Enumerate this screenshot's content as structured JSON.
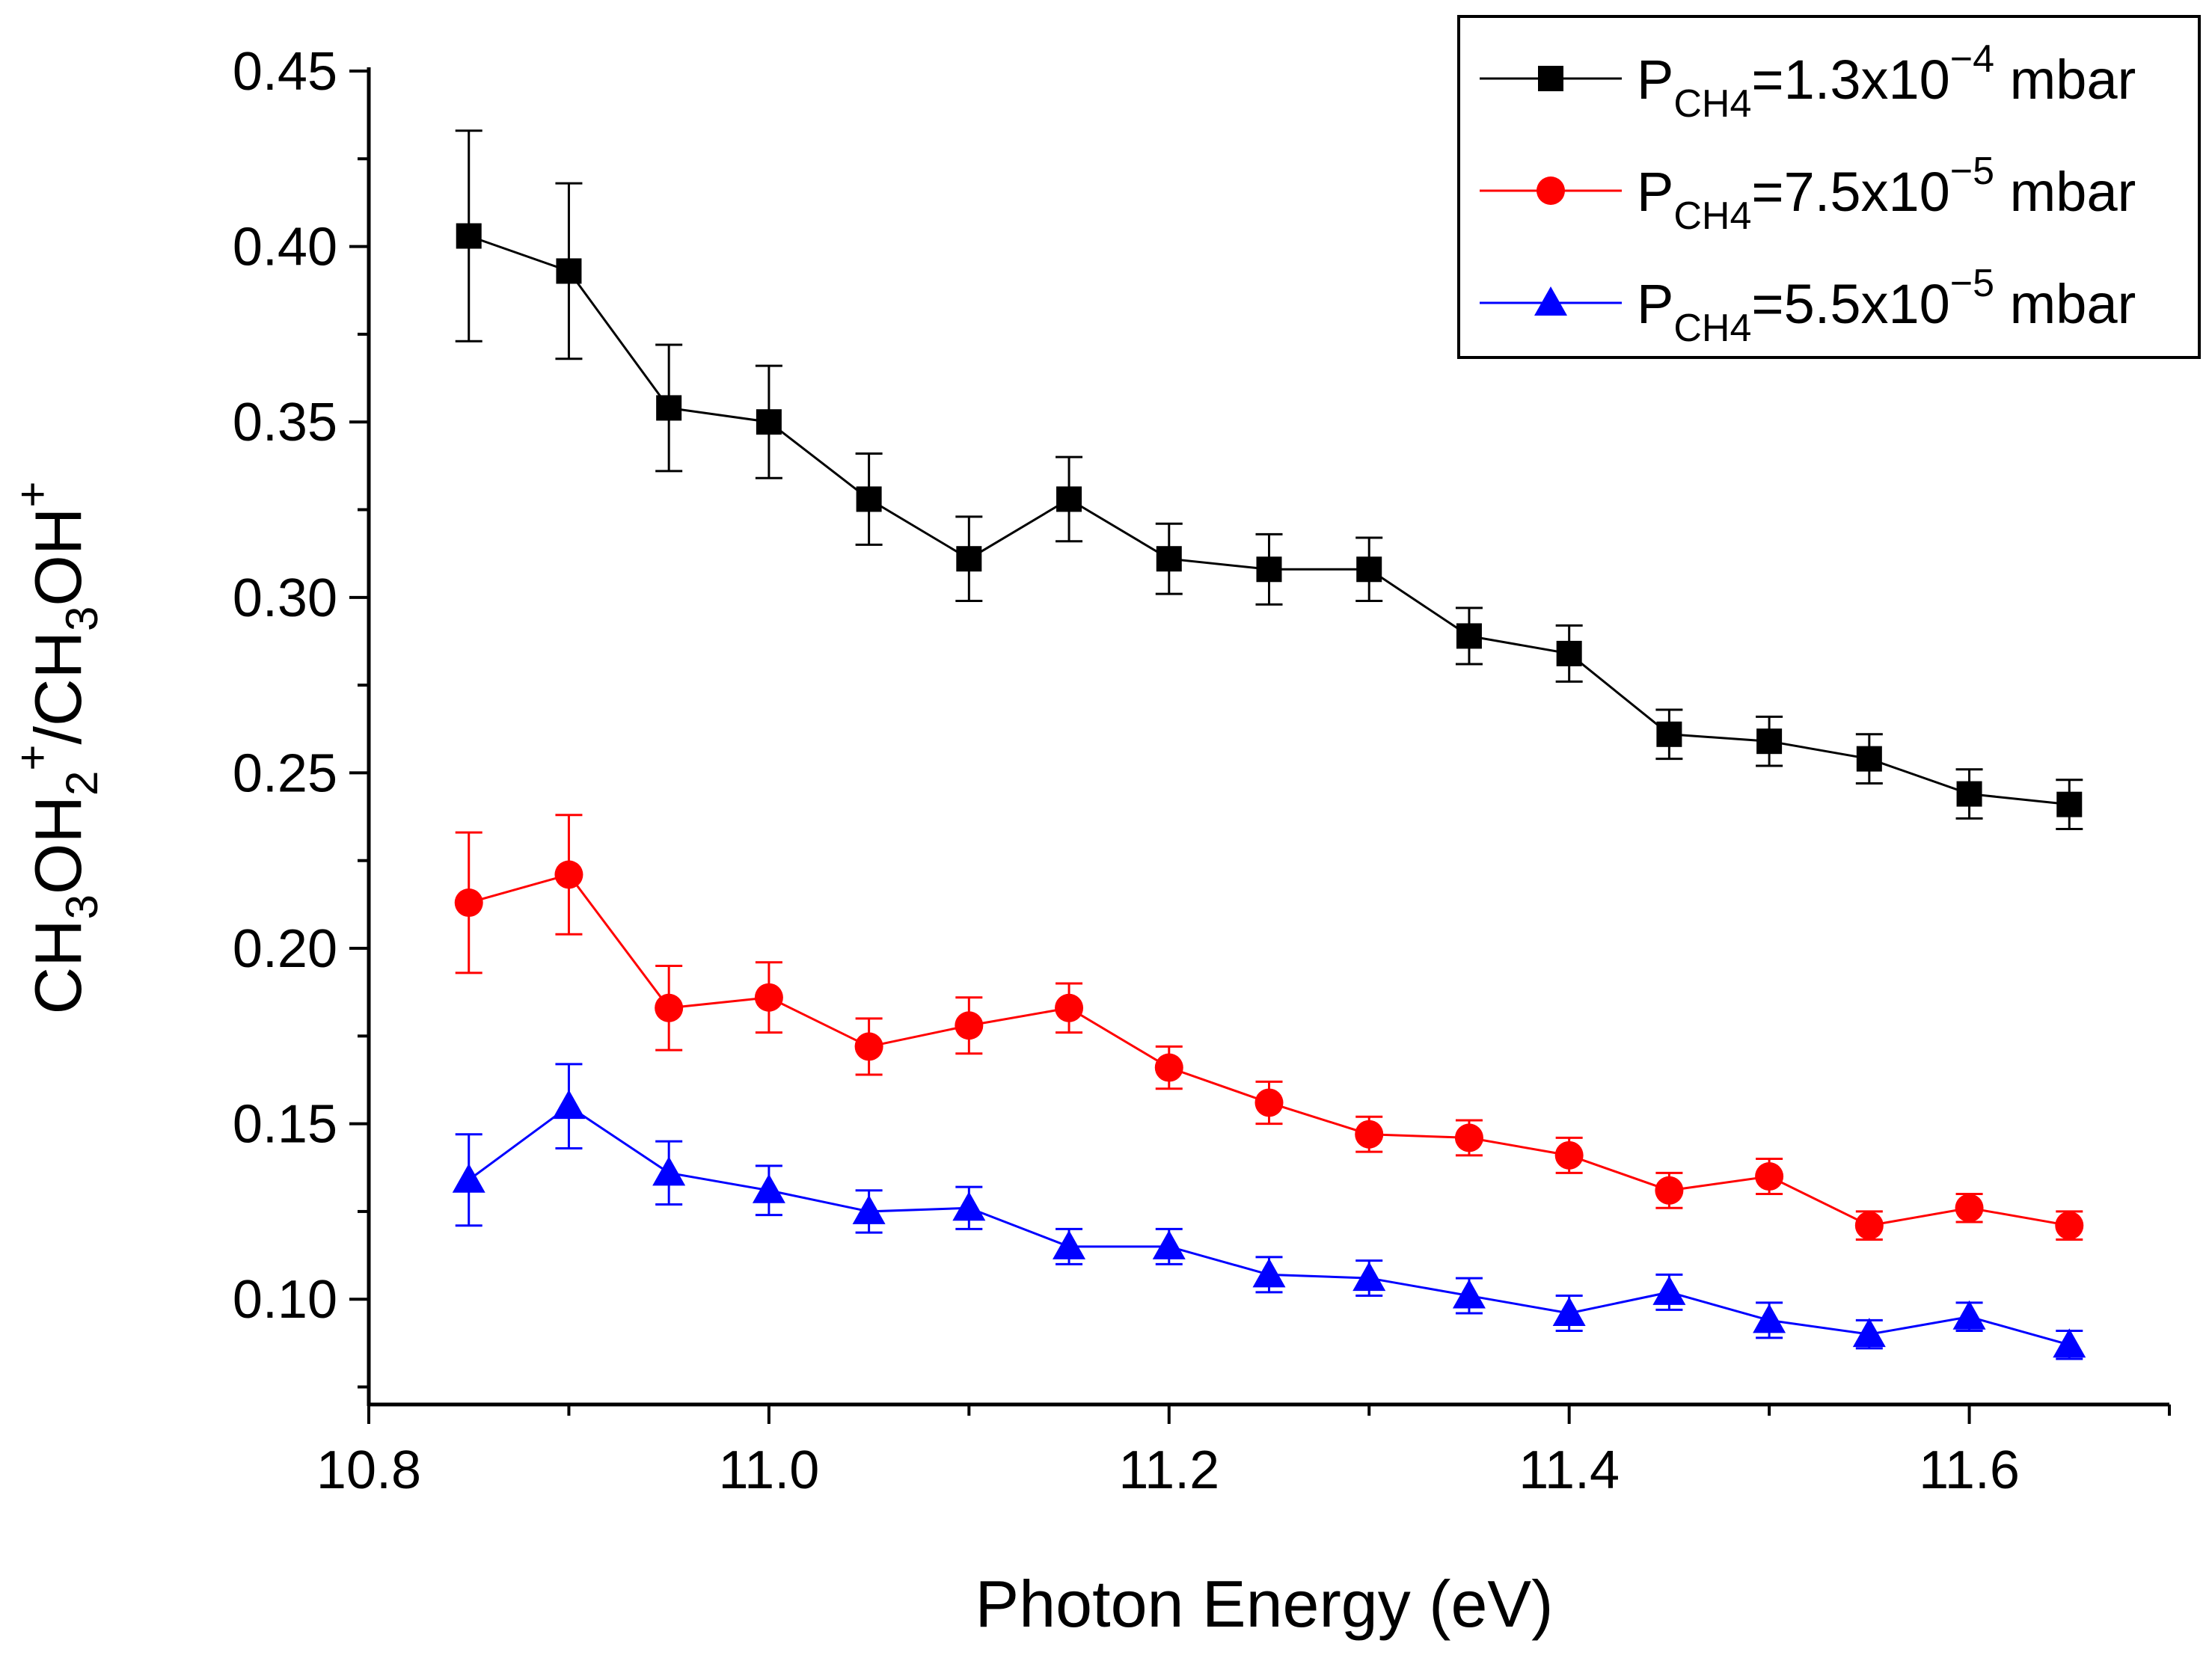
{
  "chart_data": {
    "type": "line",
    "title": "",
    "xlabel": "Photon Energy (eV)",
    "ylabel": {
      "parts": [
        {
          "t": "CH",
          "s": "n"
        },
        {
          "t": "3",
          "s": "sub"
        },
        {
          "t": "OH",
          "s": "n"
        },
        {
          "t": "2",
          "s": "sub"
        },
        {
          "t": "+",
          "s": "sup"
        },
        {
          "t": "/CH",
          "s": "n"
        },
        {
          "t": "3",
          "s": "sub"
        },
        {
          "t": "OH",
          "s": "n"
        },
        {
          "t": "+",
          "s": "sup"
        }
      ]
    },
    "xlim": [
      10.8,
      11.7
    ],
    "ylim": [
      0.07,
      0.45
    ],
    "xticks": [
      10.8,
      11.0,
      11.2,
      11.4,
      11.6
    ],
    "xtick_labels": [
      "10.8",
      "11.0",
      "11.2",
      "11.4",
      "11.6"
    ],
    "yticks": [
      0.1,
      0.15,
      0.2,
      0.25,
      0.3,
      0.35,
      0.4,
      0.45
    ],
    "ytick_labels": [
      "0.10",
      "0.15",
      "0.20",
      "0.25",
      "0.30",
      "0.35",
      "0.40",
      "0.45"
    ],
    "grid": false,
    "legend_position": "top-right",
    "x": [
      10.85,
      10.9,
      10.95,
      11.0,
      11.05,
      11.1,
      11.15,
      11.2,
      11.25,
      11.3,
      11.35,
      11.4,
      11.45,
      11.5,
      11.55,
      11.6,
      11.65
    ],
    "series": [
      {
        "name": "P_CH4=1.3x10^-4 mbar",
        "legend": {
          "p": "P",
          "sub": "CH4",
          "mid": "=1.3x10",
          "sup": "−4",
          "unit": " mbar"
        },
        "color": "#000000",
        "marker": "square",
        "values": [
          0.403,
          0.393,
          0.354,
          0.35,
          0.328,
          0.311,
          0.328,
          0.311,
          0.308,
          0.308,
          0.289,
          0.284,
          0.261,
          0.259,
          0.254,
          0.244,
          0.241
        ],
        "errors": [
          0.03,
          0.025,
          0.018,
          0.016,
          0.013,
          0.012,
          0.012,
          0.01,
          0.01,
          0.009,
          0.008,
          0.008,
          0.007,
          0.007,
          0.007,
          0.007,
          0.007
        ]
      },
      {
        "name": "P_CH4=7.5x10^-5 mbar",
        "legend": {
          "p": "P",
          "sub": "CH4",
          "mid": "=7.5x10",
          "sup": "−5",
          "unit": " mbar"
        },
        "color": "#ff0000",
        "marker": "circle",
        "values": [
          0.213,
          0.221,
          0.183,
          0.186,
          0.172,
          0.178,
          0.183,
          0.166,
          0.156,
          0.147,
          0.146,
          0.141,
          0.131,
          0.135,
          0.121,
          0.126,
          0.121
        ],
        "errors": [
          0.02,
          0.017,
          0.012,
          0.01,
          0.008,
          0.008,
          0.007,
          0.006,
          0.006,
          0.005,
          0.005,
          0.005,
          0.005,
          0.005,
          0.004,
          0.004,
          0.004
        ]
      },
      {
        "name": "P_CH4=5.5x10^-5 mbar",
        "legend": {
          "p": "P",
          "sub": "CH4",
          "mid": "=5.5x10",
          "sup": "−5",
          "unit": " mbar"
        },
        "color": "#0000ff",
        "marker": "triangle",
        "values": [
          0.134,
          0.155,
          0.136,
          0.131,
          0.125,
          0.126,
          0.115,
          0.115,
          0.107,
          0.106,
          0.101,
          0.096,
          0.102,
          0.094,
          0.09,
          0.095,
          0.087
        ],
        "errors": [
          0.013,
          0.012,
          0.009,
          0.007,
          0.006,
          0.006,
          0.005,
          0.005,
          0.005,
          0.005,
          0.005,
          0.005,
          0.005,
          0.005,
          0.004,
          0.004,
          0.004
        ]
      }
    ]
  }
}
